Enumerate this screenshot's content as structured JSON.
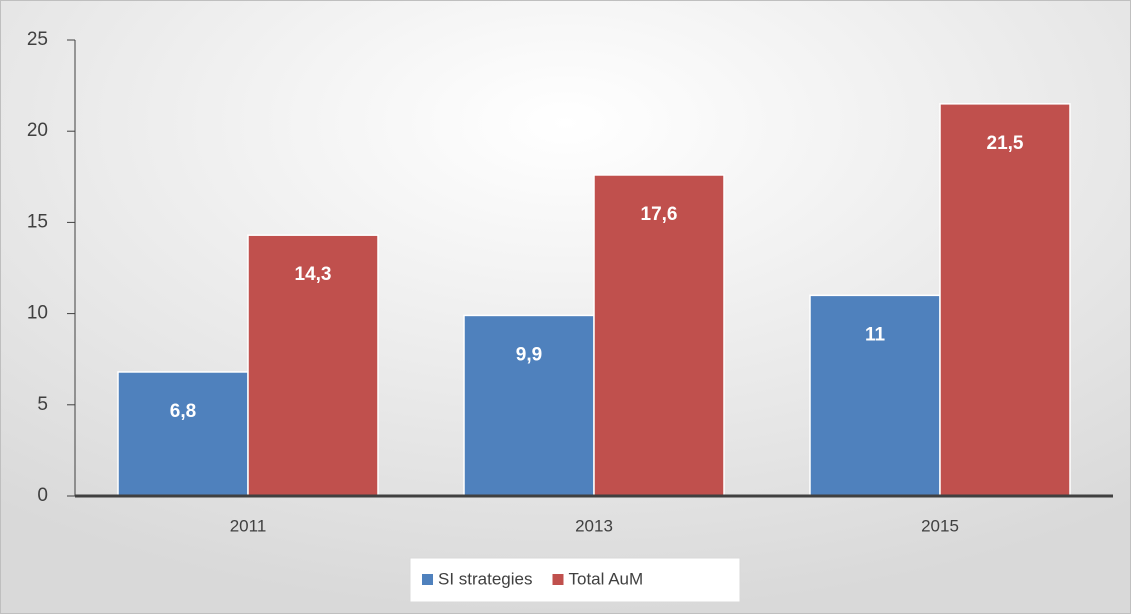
{
  "chart_data": {
    "type": "bar",
    "categories": [
      "2011",
      "2013",
      "2015"
    ],
    "series": [
      {
        "name": "SI strategies",
        "color": "#4f81bd",
        "values": [
          6.8,
          9.9,
          11
        ],
        "value_labels": [
          "6,8",
          "9,9",
          "11"
        ]
      },
      {
        "name": "Total AuM",
        "color": "#c0504d",
        "values": [
          14.3,
          17.6,
          21.5
        ],
        "value_labels": [
          "14,3",
          "17,6",
          "21,5"
        ]
      }
    ],
    "ylim": [
      0,
      25
    ],
    "yticks": [
      0,
      5,
      10,
      15,
      20,
      25
    ],
    "legend": "bottom"
  }
}
